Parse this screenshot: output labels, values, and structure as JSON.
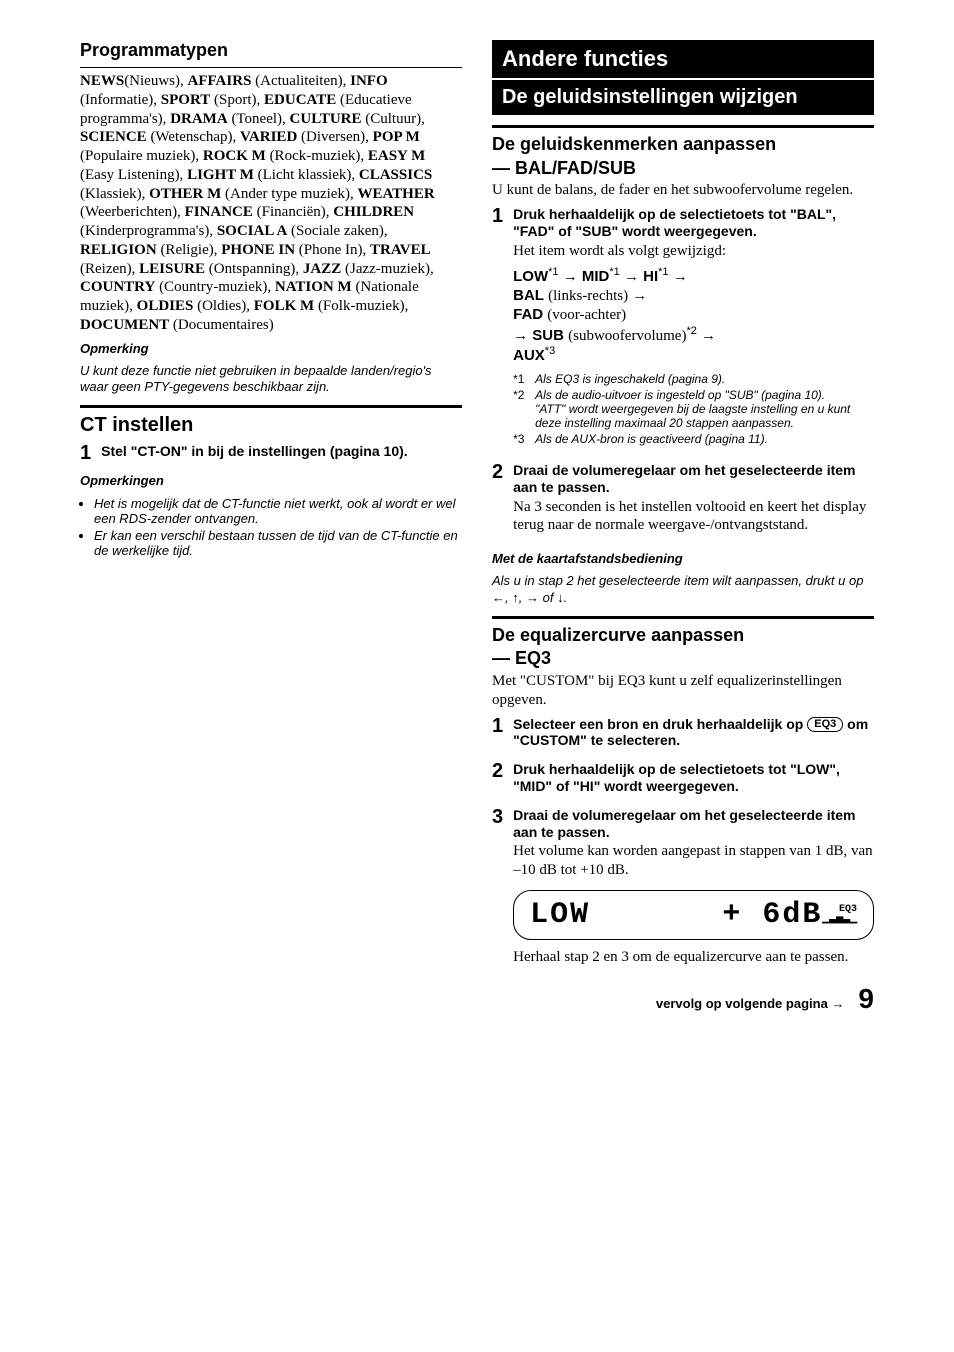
{
  "left": {
    "programtypes_heading": "Programmatypen",
    "pty": [
      {
        "code": "NEWS",
        "desc": "(Nieuws), "
      },
      {
        "code": "AFFAIRS",
        "desc": " (Actualiteiten), "
      },
      {
        "code": "INFO",
        "desc": " (Informatie), "
      },
      {
        "code": "SPORT",
        "desc": " (Sport), "
      },
      {
        "code": "EDUCATE",
        "desc": " (Educatieve programma's), "
      },
      {
        "code": "DRAMA",
        "desc": " (Toneel), "
      },
      {
        "code": "CULTURE",
        "desc": " (Cultuur), "
      },
      {
        "code": "SCIENCE",
        "desc": " (Wetenschap), "
      },
      {
        "code": "VARIED",
        "desc": " (Diversen), "
      },
      {
        "code": "POP M",
        "desc": " (Populaire muziek), "
      },
      {
        "code": "ROCK M",
        "desc": " (Rock-muziek), "
      },
      {
        "code": "EASY M",
        "desc": " (Easy Listening), "
      },
      {
        "code": "LIGHT M",
        "desc": " (Licht klassiek), "
      },
      {
        "code": "CLASSICS",
        "desc": " (Klassiek), "
      },
      {
        "code": "OTHER M",
        "desc": " (Ander type muziek), "
      },
      {
        "code": "WEATHER",
        "desc": " (Weerberichten), "
      },
      {
        "code": "FINANCE",
        "desc": " (Financiën), "
      },
      {
        "code": "CHILDREN",
        "desc": " (Kinderprogramma's), "
      },
      {
        "code": "SOCIAL A",
        "desc": " (Sociale zaken), "
      },
      {
        "code": "RELIGION",
        "desc": " (Religie), "
      },
      {
        "code": "PHONE IN",
        "desc": " (Phone In), "
      },
      {
        "code": "TRAVEL",
        "desc": " (Reizen), "
      },
      {
        "code": "LEISURE",
        "desc": " (Ontspanning), "
      },
      {
        "code": "JAZZ",
        "desc": " (Jazz-muziek), "
      },
      {
        "code": "COUNTRY",
        "desc": " (Country-muziek), "
      },
      {
        "code": "NATION M",
        "desc": " (Nationale muziek), "
      },
      {
        "code": "OLDIES",
        "desc": " (Oldies), "
      },
      {
        "code": "FOLK M",
        "desc": " (Folk-muziek), "
      },
      {
        "code": "DOCUMENT",
        "desc": " (Documentaires)"
      }
    ],
    "note_h": "Opmerking",
    "note_t": "U kunt deze functie niet gebruiken in bepaalde landen/regio's waar geen PTY-gegevens beschikbaar zijn.",
    "ct_heading": "CT instellen",
    "ct_step_num": "1",
    "ct_step_head": "Stel \"CT-ON\" in bij de instellingen (pagina 10).",
    "notes_h": "Opmerkingen",
    "notes": [
      "Het is mogelijk dat de CT-functie niet werkt, ook al wordt er wel een RDS-zender ontvangen.",
      "Er kan een verschil bestaan tussen de tijd van de CT-functie en de werkelijke tijd."
    ]
  },
  "right": {
    "bar1": "Andere functies",
    "bar2": "De geluidsinstellingen wijzigen",
    "sec1_head1": "De geluidskenmerken aanpassen",
    "sec1_head2": "— BAL/FAD/SUB",
    "sec1_intro": "U kunt de balans, de fader en het subwoofervolume regelen.",
    "s1_1_head": "Druk herhaaldelijk op de selectietoets tot \"BAL\", \"FAD\" of \"SUB\" wordt weergegeven.",
    "s1_1_body": "Het item wordt als volgt gewijzigd:",
    "seq": {
      "low": "LOW",
      "mid": "MID",
      "hi": "HI",
      "bal": "BAL",
      "bal_desc": "(links-rechts)",
      "fad": "FAD",
      "fad_desc": "(voor-achter)",
      "sub": "SUB",
      "sub_desc": "(subwoofervolume)",
      "aux": "AUX",
      "fn1": "*1",
      "fn2": "*2",
      "fn3": "*3"
    },
    "footnotes": [
      {
        "lab": "*1",
        "txt": "Als EQ3 is ingeschakeld (pagina 9)."
      },
      {
        "lab": "*2",
        "txt": "Als de audio-uitvoer is ingesteld op \"SUB\" (pagina 10).\n\"ATT\" wordt weergegeven bij de laagste instelling en u kunt deze instelling maximaal 20 stappen aanpassen."
      },
      {
        "lab": "*3",
        "txt": "Als de AUX-bron is geactiveerd (pagina 11)."
      }
    ],
    "s1_2_head": "Draai de volumeregelaar om het geselecteerde item aan te passen.",
    "s1_2_body": "Na 3 seconden is het instellen voltooid en keert het display terug naar de normale weergave-/ontvangststand.",
    "remote_h": "Met de kaartafstandsbediening",
    "remote_t_a": "Als u in stap 2 het geselecteerde item wilt aanpassen, drukt u op ",
    "remote_t_b": " of ",
    "sec2_head1": "De equalizercurve aanpassen",
    "sec2_head2": "— EQ3",
    "sec2_intro": "Met \"CUSTOM\" bij EQ3 kunt u zelf equalizerinstellingen opgeven.",
    "s2_1_head_a": "Selecteer een bron en druk herhaaldelijk op ",
    "s2_1_head_b": " om \"CUSTOM\" te selecteren.",
    "eq3_btn": "EQ3",
    "s2_2_head": "Druk herhaaldelijk op de selectietoets tot \"LOW\", \"MID\" of \"HI\" wordt weergegeven.",
    "s2_3_head": "Draai de volumeregelaar om het geselecteerde item aan te passen.",
    "s2_3_body": "Het volume kan worden aangepast in stappen van 1 dB, van –10 dB tot +10 dB.",
    "display_left": "LOW",
    "display_mid": "+  6dB",
    "display_eq3": "EQ3",
    "s2_3_after": "Herhaal stap 2 en 3 om de equalizercurve aan te passen.",
    "cont": "vervolg op volgende pagina →",
    "page_no": "9"
  }
}
